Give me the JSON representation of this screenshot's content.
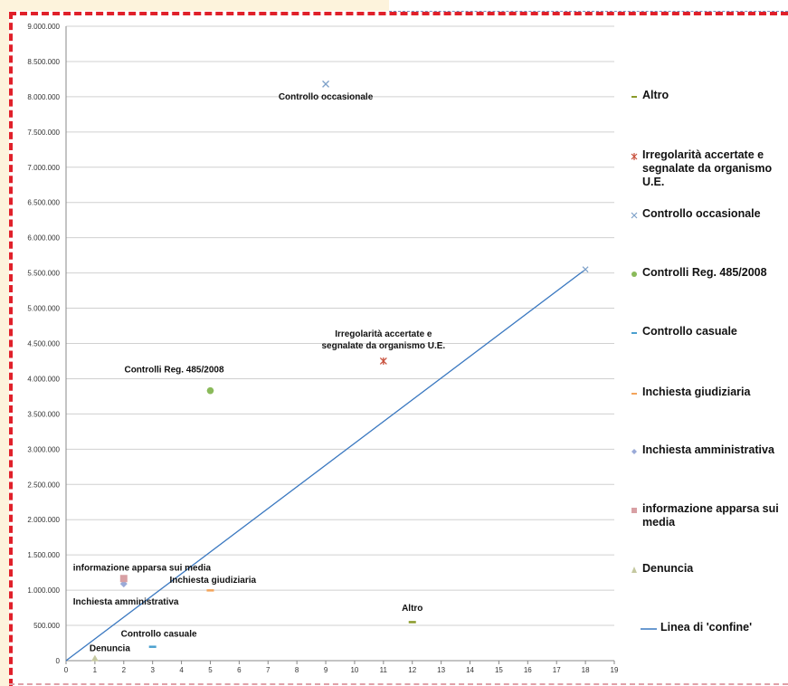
{
  "chart_data": {
    "type": "scatter",
    "xlim": [
      0,
      19
    ],
    "ylim": [
      0,
      9000000
    ],
    "x_ticks": [
      "0",
      "1",
      "2",
      "3",
      "4",
      "5",
      "6",
      "7",
      "8",
      "9",
      "10",
      "11",
      "12",
      "13",
      "14",
      "15",
      "16",
      "17",
      "18",
      "19"
    ],
    "y_ticks": [
      "0",
      "500.000",
      "1.000.000",
      "1.500.000",
      "2.000.000",
      "2.500.000",
      "3.000.000",
      "3.500.000",
      "4.000.000",
      "4.500.000",
      "5.000.000",
      "5.500.000",
      "6.000.000",
      "6.500.000",
      "7.000.000",
      "7.500.000",
      "8.000.000",
      "8.500.000",
      "9.000.000"
    ],
    "grid": "horizontal",
    "legend_position": "right",
    "series": [
      {
        "name": "Altro",
        "color": "#8a9a2a",
        "marker": "dash",
        "x": 12,
        "y": 550000,
        "label": "Altro"
      },
      {
        "name": "Irregolarità accertate e segnalate da organismo U.E.",
        "color": "#c8503c",
        "marker": "star",
        "x": 11,
        "y": 4250000,
        "label": "Irregolarità accertate e segnalate da organismo U.E."
      },
      {
        "name": "Controllo occasionale",
        "color": "#7ea1c9",
        "marker": "x",
        "x": 9,
        "y": 8180000,
        "label": "Controllo occasionale"
      },
      {
        "name": "Controlli Reg. 485/2008",
        "color": "#8aba5a",
        "marker": "circle",
        "x": 5,
        "y": 3830000,
        "label": "Controlli Reg. 485/2008"
      },
      {
        "name": "Controllo casuale",
        "color": "#4aa0cf",
        "marker": "dash",
        "x": 3,
        "y": 200000,
        "label": "Controllo casuale"
      },
      {
        "name": "Inchiesta giudiziaria",
        "color": "#f3a45a",
        "marker": "dash",
        "x": 5,
        "y": 1000000,
        "label": "Inchiesta giudiziaria"
      },
      {
        "name": "Inchiesta amministrativa",
        "color": "#9aaad8",
        "marker": "diamond",
        "x": 2,
        "y": 1090000,
        "label": "Inchiesta amministrativa"
      },
      {
        "name": "informazione apparsa sui media",
        "color": "#d8a0a4",
        "marker": "square",
        "x": 2,
        "y": 1165000,
        "label": "informazione apparsa sui media"
      },
      {
        "name": "Denuncia",
        "color": "#c5c8a0",
        "marker": "triangle",
        "x": 1,
        "y": 30000,
        "label": "Denuncia"
      }
    ],
    "line": {
      "name": "Linea di 'confine'",
      "color": "#3a78c0",
      "x": [
        0,
        18
      ],
      "y": [
        0,
        5550000
      ]
    }
  },
  "legend": {
    "items": [
      {
        "label": "Altro",
        "color": "#8a9a2a",
        "marker": "dash"
      },
      {
        "label": "Irregolarità accertate e segnalate da organismo U.E.",
        "color": "#c8503c",
        "marker": "star"
      },
      {
        "label": "Controllo occasionale",
        "color": "#7ea1c9",
        "marker": "x"
      },
      {
        "label": "Controlli Reg. 485/2008",
        "color": "#8aba5a",
        "marker": "circle"
      },
      {
        "label": "Controllo casuale",
        "color": "#4aa0cf",
        "marker": "dash"
      },
      {
        "label": "Inchiesta giudiziaria",
        "color": "#f3a45a",
        "marker": "dash"
      },
      {
        "label": "Inchiesta amministrativa",
        "color": "#9aaad8",
        "marker": "diamond"
      },
      {
        "label": "informazione apparsa sui media",
        "color": "#d8a0a4",
        "marker": "square"
      },
      {
        "label": "Denuncia",
        "color": "#c5c8a0",
        "marker": "triangle"
      },
      {
        "label": "Linea di 'confine'",
        "color": "#3a78c0",
        "marker": "line"
      }
    ]
  }
}
